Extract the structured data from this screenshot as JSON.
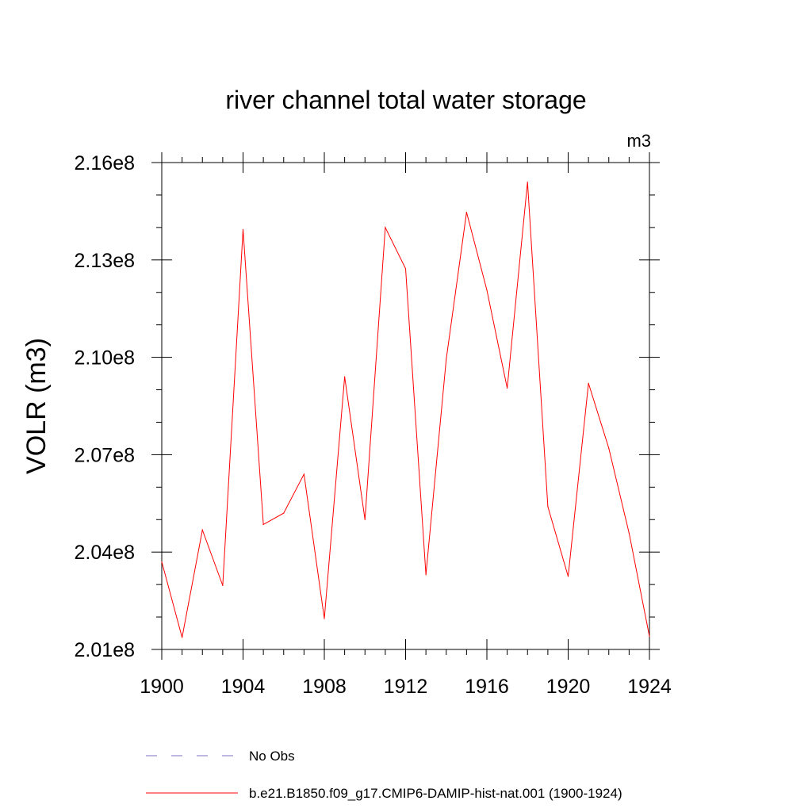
{
  "chart_data": {
    "type": "line",
    "title": "river channel total water storage",
    "units_label": "m3",
    "ylabel": "VOLR  (m3)",
    "xlabel": "",
    "xlim": [
      1900,
      1924
    ],
    "ylim": [
      201000000.0,
      216000000.0
    ],
    "x_ticks": [
      1900,
      1904,
      1908,
      1912,
      1916,
      1920,
      1924
    ],
    "y_ticks": [
      {
        "value": 201000000.0,
        "label": "2.01e8"
      },
      {
        "value": 204000000.0,
        "label": "2.04e8"
      },
      {
        "value": 207000000.0,
        "label": "2.07e8"
      },
      {
        "value": 210000000.0,
        "label": "2.10e8"
      },
      {
        "value": 213000000.0,
        "label": "2.13e8"
      },
      {
        "value": 216000000.0,
        "label": "2.16e8"
      }
    ],
    "grid": false,
    "legend_position": "bottom",
    "series": [
      {
        "name": "b.e21.B1850.f09_g17.CMIP6-DAMIP-hist-nat.001 (1900-1924)",
        "color": "#ff0000",
        "style": "solid",
        "x": [
          1900,
          1901,
          1902,
          1903,
          1904,
          1905,
          1906,
          1907,
          1908,
          1909,
          1910,
          1911,
          1912,
          1913,
          1914,
          1915,
          1916,
          1917,
          1918,
          1919,
          1920,
          1921,
          1922,
          1923,
          1924
        ],
        "values": [
          203700000.0,
          201370000.0,
          204680000.0,
          202970000.0,
          213940000.0,
          204850000.0,
          205200000.0,
          206400000.0,
          201950000.0,
          209400000.0,
          205000000.0,
          214000000.0,
          212730000.0,
          203300000.0,
          209940000.0,
          214470000.0,
          212070000.0,
          209050000.0,
          215400000.0,
          205400000.0,
          203250000.0,
          209200000.0,
          207200000.0,
          204580000.0,
          201400000.0
        ]
      }
    ],
    "legend": [
      {
        "label": "No Obs",
        "color": "#7b73c4",
        "style": "dashed"
      },
      {
        "label": "b.e21.B1850.f09_g17.CMIP6-DAMIP-hist-nat.001 (1900-1924)",
        "color": "#ff0000",
        "style": "solid"
      }
    ]
  }
}
